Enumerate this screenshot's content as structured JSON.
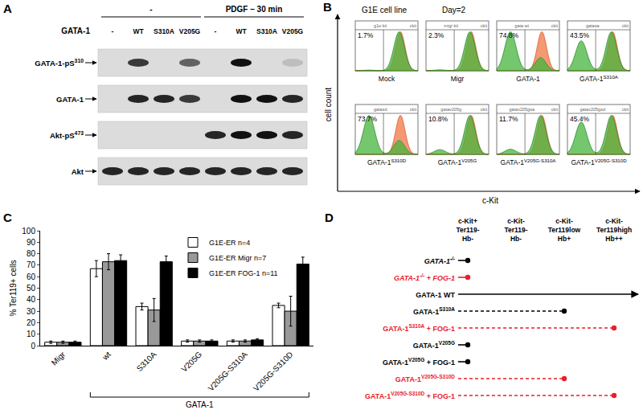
{
  "panel_labels": [
    "A",
    "B",
    "C",
    "D"
  ],
  "blot": {
    "treatment_headers": [
      {
        "text": "-",
        "lanes": [
          0,
          3
        ]
      },
      {
        "text": "PDGF – 30 min",
        "lanes": [
          4,
          7
        ]
      }
    ],
    "row_header": "GATA-1",
    "lanes": [
      "-",
      "WT",
      "S310A",
      "V205G",
      "-",
      "WT",
      "S310A",
      "V205G"
    ],
    "rows": [
      {
        "name": {
          "base": "GATA-1-pS",
          "sup": "310"
        },
        "bands": [
          0,
          0.8,
          0,
          0.6,
          0,
          1,
          0,
          0.15
        ]
      },
      {
        "name": {
          "base": "GATA-1"
        },
        "bands": [
          0,
          0.9,
          0.9,
          0.8,
          0,
          1,
          1,
          0.9
        ]
      },
      {
        "name": {
          "base": "Akt-pS",
          "sup": "473"
        },
        "bands": [
          0,
          0,
          0,
          0,
          0.9,
          1,
          1,
          0.9
        ]
      },
      {
        "name": {
          "base": "Akt"
        },
        "bands": [
          0.9,
          0.9,
          0.9,
          0.9,
          0.9,
          0.9,
          0.9,
          0.9
        ]
      }
    ]
  },
  "flow": {
    "title": "G1E cell line",
    "day": "Day=2",
    "y_label": "cell count",
    "x_label": "c-Kit",
    "plots": [
      {
        "caption": {
          "base": "Mock"
        },
        "inner_title": "g1e kit",
        "gate_label": "ckit",
        "percent": 1.7,
        "percent_label": "1.7%"
      },
      {
        "caption": {
          "base": "Migr"
        },
        "inner_title": "migr kit",
        "gate_label": "ckit",
        "percent": 2.3,
        "percent_label": "2.3%"
      },
      {
        "caption": {
          "base": "GATA-1"
        },
        "inner_title": "gata wt",
        "gate_label": "ckit",
        "percent": 74.8,
        "percent_label": "74.8%"
      },
      {
        "caption": {
          "base": "GATA-1",
          "sup": "S310A"
        },
        "inner_title": "gatasa",
        "gate_label": "ckit",
        "percent": 43.5,
        "percent_label": "43.5%"
      },
      {
        "caption": {
          "base": "GATA-1",
          "sup": "S310D"
        },
        "inner_title": "gatasd",
        "gate_label": "ckit",
        "percent": 73.7,
        "percent_label": "73.7%"
      },
      {
        "caption": {
          "base": "GATA-1",
          "sup": "V205G"
        },
        "inner_title": "gatav205g",
        "gate_label": "ckit",
        "percent": 10.8,
        "percent_label": "10.8%"
      },
      {
        "caption": {
          "base": "GATA-1",
          "sup": "V205G-S310A"
        },
        "inner_title": "gatav205gsa",
        "gate_label": "ckit",
        "percent": 11.7,
        "percent_label": "11.7%"
      },
      {
        "caption": {
          "base": "GATA-1",
          "sup": "V205G-S310D"
        },
        "inner_title": "gatav205gsd",
        "gate_label": "ckit",
        "percent": 45.4,
        "percent_label": "45.4%"
      }
    ]
  },
  "chart_data": {
    "type": "bar",
    "y_label": "% Ter119+ cells",
    "categories": [
      "Migr",
      "wt",
      "S310A",
      "V205G",
      "V205G-S310A",
      "V205G-S310D"
    ],
    "series": [
      {
        "name": "G1E-ER n=4",
        "color": "#ffffff",
        "values": [
          3,
          67,
          34,
          4,
          4,
          35
        ],
        "errors": [
          1,
          7,
          3,
          1,
          1,
          2
        ]
      },
      {
        "name": "G1E-ER Migr n=7",
        "color": "#999999",
        "values": [
          3,
          73,
          31,
          4,
          4,
          30
        ],
        "errors": [
          1,
          7,
          10,
          1,
          1,
          13
        ]
      },
      {
        "name": "G1E-ER FOG-1 n=11",
        "color": "#000000",
        "values": [
          3,
          74,
          73,
          4,
          5,
          71
        ],
        "errors": [
          1,
          5,
          5,
          1,
          1,
          6
        ]
      }
    ],
    "annotations": [
      {
        "text": "GATA-1",
        "from": "wt",
        "to": "V205G-S310D"
      }
    ],
    "ylim": [
      0,
      100
    ],
    "yticks": [
      0,
      10,
      20,
      30,
      40,
      50,
      60,
      70,
      80,
      90,
      100
    ],
    "grid": false,
    "legend": "top right"
  },
  "diagram": {
    "columns": [
      [
        "c-Kit+",
        "Ter119-",
        "Hb-"
      ],
      [
        "c-Kit-",
        "Ter119-",
        "Hb-"
      ],
      [
        "c-Kit-",
        "Ter119low",
        "Hb+"
      ],
      [
        "c-Kit-",
        "Ter119high",
        "Hb++"
      ]
    ],
    "rows": [
      {
        "label": {
          "base": "GATA-1",
          "sup": "-/-",
          "italic": true
        },
        "color": "#000000",
        "line_style": "solid",
        "stage": 0,
        "marker": "dot"
      },
      {
        "label": {
          "base": "GATA-1",
          "sup": "-/-",
          "suffix": " + FOG-1",
          "italic": true
        },
        "color": "#e8202a",
        "line_style": "solid",
        "stage": 0,
        "marker": "dot"
      },
      {
        "label": {
          "base": "GATA-1 WT"
        },
        "color": "#000000",
        "line_style": "solid",
        "stage": 3,
        "marker": "arrow"
      },
      {
        "label": {
          "base": "GATA-1",
          "sup": "S310A"
        },
        "color": "#000000",
        "line_style": "dashed",
        "stage": 2,
        "marker": "dot"
      },
      {
        "label": {
          "base": "GATA-1",
          "sup": "S310A",
          "suffix": " + FOG-1"
        },
        "color": "#e8202a",
        "line_style": "dashed",
        "stage": 3,
        "marker": "dot"
      },
      {
        "label": {
          "base": "GATA-1",
          "sup": "V205G"
        },
        "color": "#000000",
        "line_style": "solid",
        "stage": 0,
        "marker": "dot"
      },
      {
        "label": {
          "base": "GATA-1",
          "sup": "V205G",
          "suffix": " + FOG-1"
        },
        "color": "#000000",
        "line_style": "solid",
        "stage": 0,
        "marker": "dot"
      },
      {
        "label": {
          "base": "GATA-1",
          "sup": "V205G-S310D"
        },
        "color": "#e8202a",
        "line_style": "dashed",
        "stage": 2,
        "marker": "dot"
      },
      {
        "label": {
          "base": "GATA-1",
          "sup": "V205G-S310D",
          "suffix": " + FOG-1"
        },
        "color": "#e8202a",
        "line_style": "dashed",
        "stage": 3,
        "marker": "dot"
      }
    ]
  }
}
